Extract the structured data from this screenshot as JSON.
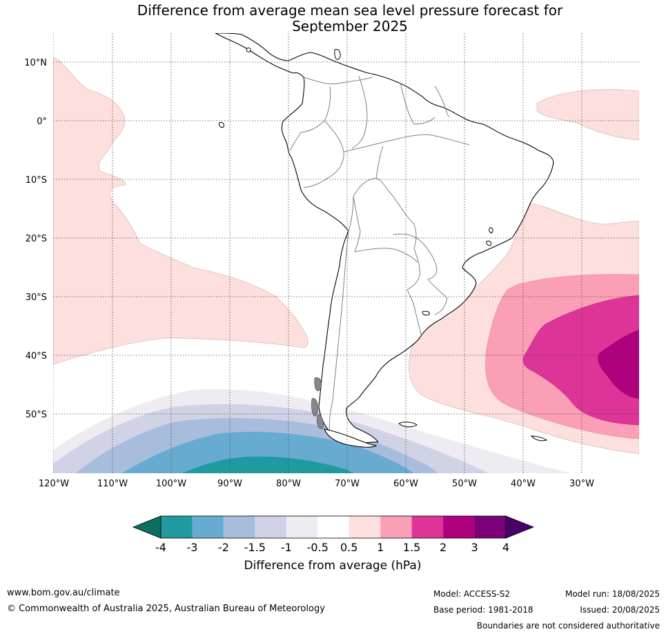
{
  "title_line1": "Difference from average mean sea level pressure forecast for",
  "title_line2": "September 2025",
  "lat_labels": [
    "10°N",
    "0°",
    "10°S",
    "20°S",
    "30°S",
    "40°S",
    "50°S"
  ],
  "lon_labels": [
    "120°W",
    "110°W",
    "100°W",
    "90°W",
    "80°W",
    "70°W",
    "60°W",
    "50°W",
    "40°W",
    "30°W"
  ],
  "legend": {
    "title": "Difference from average (hPa)",
    "tick_labels": [
      "-4",
      "-3",
      "-2",
      "-1.5",
      "-1",
      "-0.5",
      "0.5",
      "1",
      "1.5",
      "2",
      "3",
      "4"
    ],
    "colors": [
      "#0e6e5f",
      "#1e9aa0",
      "#67abd0",
      "#a8bcdc",
      "#d0d2e6",
      "#efebf2",
      "#ffffff",
      "#fde0dd",
      "#fa9fb5",
      "#dd3497",
      "#ae017e",
      "#7a0177",
      "#49006a"
    ]
  },
  "footer": {
    "website": "www.bom.gov.au/climate",
    "copyright": "© Commonwealth of Australia 2025, Australian Bureau of Meteorology",
    "model": "Model: ACCESS-S2",
    "base_period": "Base period: 1981-2018",
    "model_run": "Model run: 18/08/2025",
    "issued": "Issued: 20/08/2025",
    "boundaries": "Boundaries are not considered authoritative"
  }
}
